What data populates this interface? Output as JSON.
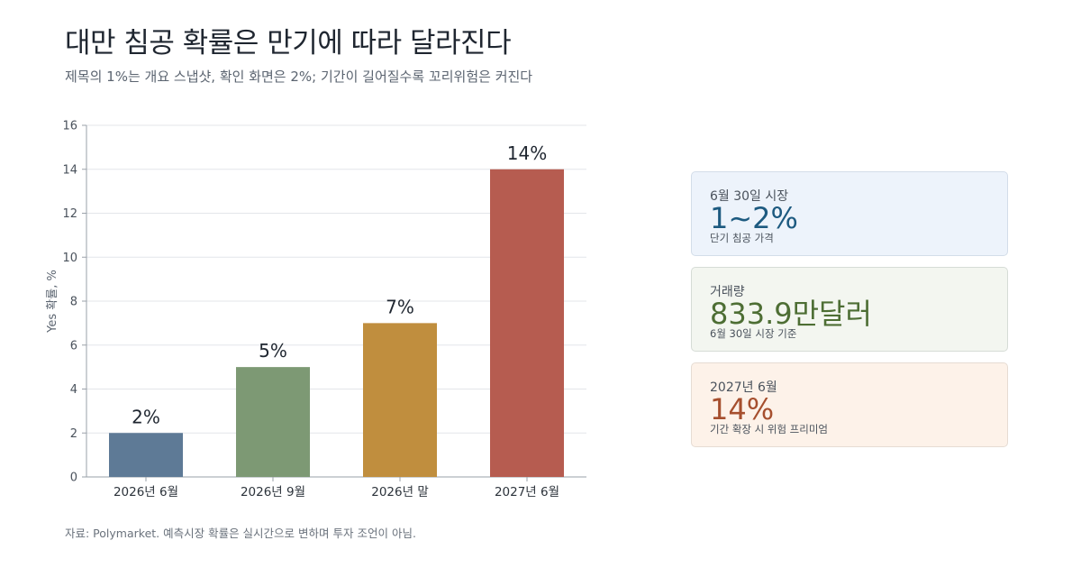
{
  "header": {
    "title": "대만 침공 확률은 만기에 따라 달라진다",
    "subtitle": "제목의 1%는 개요 스냅샷, 확인 화면은 2%; 기간이 길어질수록 꼬리위험은 커진다"
  },
  "footer": {
    "source": "자료: Polymarket. 예측시장 확률은 실시간으로 변하며 투자 조언이 아님."
  },
  "chart_data": {
    "type": "bar",
    "categories": [
      "2026년 6월",
      "2026년 9월",
      "2026년 말",
      "2027년 6월"
    ],
    "values": [
      2,
      5,
      7,
      14
    ],
    "data_labels": [
      "2%",
      "5%",
      "7%",
      "14%"
    ],
    "colors": [
      "#5e7a96",
      "#7d9974",
      "#c08e3e",
      "#b65c50"
    ],
    "ylabel": "Yes 확률, %",
    "ylim": [
      0,
      16
    ],
    "yticks": [
      0,
      2,
      4,
      6,
      8,
      10,
      12,
      14,
      16
    ],
    "grid": true
  },
  "cards": [
    {
      "label": "6월 30일 시장",
      "value": "1~2%",
      "sub": "단기 침공 가격",
      "value_color": "#1d5a80",
      "bg": "#edf3fb",
      "border": "#d3dde9"
    },
    {
      "label": "거래량",
      "value": "833.9만달러",
      "sub": "6월 30일 시장 기준",
      "value_color": "#4d6e34",
      "bg": "#f3f6f0",
      "border": "#d6dcd6"
    },
    {
      "label": "2027년 6월",
      "value": "14%",
      "sub": "기간 확장 시 위험 프리미엄",
      "value_color": "#a64f2e",
      "bg": "#fdf2e9",
      "border": "#e6dcd3"
    }
  ]
}
